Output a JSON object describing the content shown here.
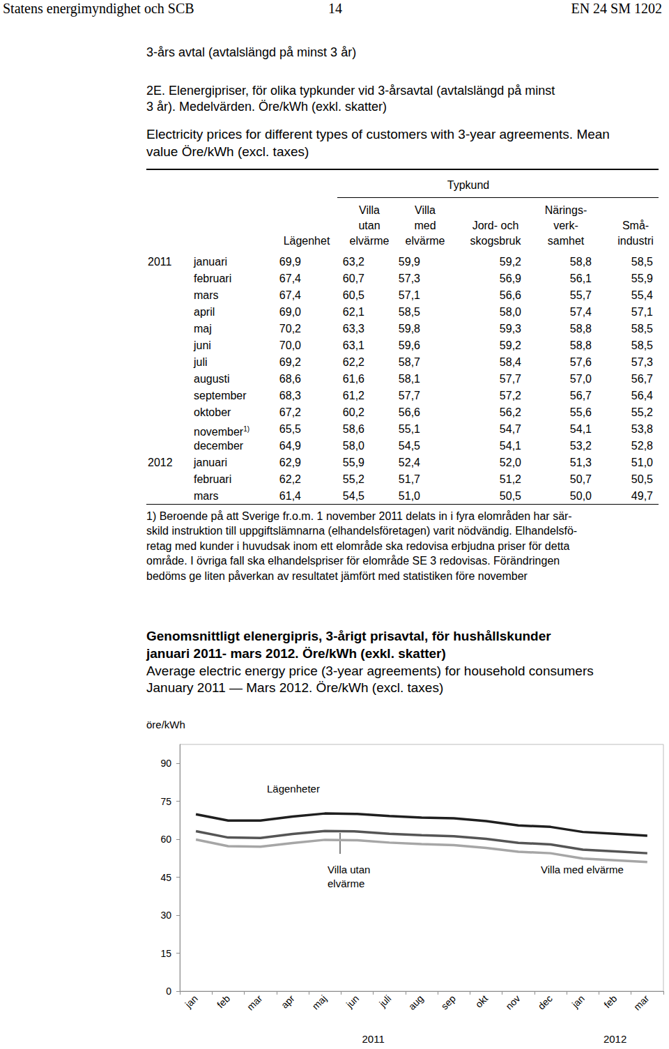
{
  "header": {
    "left": "Statens energimyndighet och SCB",
    "center": "14",
    "right": "EN 24 SM 1202"
  },
  "section_title": "3-års avtal (avtalslängd på minst 3 år)",
  "table_title": {
    "sv": [
      "2E. Elenergipriser, för olika typkunder vid 3-årsavtal (avtalslängd på minst",
      "3 år). Medelvärden. Öre/kWh (exkl. skatter)"
    ],
    "en": [
      "Electricity prices for different types of customers with 3-year agreements. Mean",
      "value Öre/kWh (excl. taxes)"
    ]
  },
  "table": {
    "group_header": "Typkund",
    "columns": [
      [
        "Lägenhet"
      ],
      [
        "Villa",
        "utan",
        "elvärme"
      ],
      [
        "Villa",
        "med",
        "elvärme"
      ],
      [
        "Jord- och",
        "skogsbruk"
      ],
      [
        "Närings-",
        "verk-",
        "samhet"
      ],
      [
        "Små-",
        "industri"
      ]
    ],
    "rows": [
      {
        "year": "2011",
        "month": "januari",
        "values": [
          "69,9",
          "63,2",
          "59,9",
          "59,2",
          "58,8",
          "58,5"
        ]
      },
      {
        "month": "februari",
        "values": [
          "67,4",
          "60,7",
          "57,3",
          "56,9",
          "56,1",
          "55,9"
        ]
      },
      {
        "month": "mars",
        "values": [
          "67,4",
          "60,5",
          "57,1",
          "56,6",
          "55,7",
          "55,4"
        ]
      },
      {
        "month": "april",
        "values": [
          "69,0",
          "62,1",
          "58,5",
          "58,0",
          "57,4",
          "57,1"
        ]
      },
      {
        "month": "maj",
        "values": [
          "70,2",
          "63,3",
          "59,8",
          "59,3",
          "58,8",
          "58,5"
        ]
      },
      {
        "month": "juni",
        "values": [
          "70,0",
          "63,1",
          "59,6",
          "59,2",
          "58,8",
          "58,5"
        ]
      },
      {
        "month": "juli",
        "values": [
          "69,2",
          "62,2",
          "58,7",
          "58,4",
          "57,6",
          "57,3"
        ]
      },
      {
        "month": "augusti",
        "values": [
          "68,6",
          "61,6",
          "58,1",
          "57,7",
          "57,0",
          "56,7"
        ]
      },
      {
        "month": "september",
        "values": [
          "68,3",
          "61,2",
          "57,7",
          "57,2",
          "56,7",
          "56,4"
        ]
      },
      {
        "month": "oktober",
        "values": [
          "67,2",
          "60,2",
          "56,6",
          "56,2",
          "55,6",
          "55,2"
        ]
      },
      {
        "month": "november",
        "note": "1)",
        "values": [
          "65,5",
          "58,6",
          "55,1",
          "54,7",
          "54,1",
          "53,8"
        ]
      },
      {
        "month": "december",
        "values": [
          "64,9",
          "58,0",
          "54,5",
          "54,1",
          "53,2",
          "52,8"
        ]
      },
      {
        "year": "2012",
        "month": "januari",
        "values": [
          "62,9",
          "55,9",
          "52,4",
          "52,0",
          "51,3",
          "51,0"
        ]
      },
      {
        "month": "februari",
        "values": [
          "62,2",
          "55,2",
          "51,7",
          "51,2",
          "50,7",
          "50,5"
        ]
      },
      {
        "month": "mars",
        "values": [
          "61,4",
          "54,5",
          "51,0",
          "50,5",
          "50,0",
          "49,7"
        ]
      }
    ]
  },
  "footnote": [
    "1) Beroende på att Sverige fr.o.m. 1 november 2011 delats in i fyra elområden har sär-",
    "skild instruktion till uppgiftslämnarna (elhandelsföretagen) varit nödvändig. Elhandelsfö-",
    "retag med kunder i huvudsak inom ett elområde ska redovisa erbjudna priser för detta",
    "område. I övriga fall ska elhandelspriser för elområde SE 3 redovisas. Förändringen",
    "bedöms ge liten påverkan av resultatet jämfört med statistiken före november"
  ],
  "chart_data": {
    "type": "line",
    "title": [
      "Genomsnittligt elenergipris, 3-årigt prisavtal, för hushållskunder",
      "januari 2011- mars 2012. Öre/kWh (exkl. skatter)"
    ],
    "subtitle": [
      "Average electric energy price (3-year agreements) for household consumers",
      "January 2011 — Mars 2012. Öre/kWh (excl. taxes)"
    ],
    "y_label": "öre/kWh",
    "categories": [
      "jan",
      "feb",
      "mar",
      "apr",
      "maj",
      "jun",
      "juli",
      "aug",
      "sep",
      "okt",
      "nov",
      "dec",
      "jan",
      "feb",
      "mar"
    ],
    "x_groups": [
      {
        "label": "2011",
        "from": 0,
        "to": 11
      },
      {
        "label": "2012",
        "from": 12,
        "to": 14
      }
    ],
    "series": [
      {
        "name": "Lägenheter",
        "color": "#1f1f1f",
        "values": [
          69.9,
          67.4,
          67.4,
          69.0,
          70.2,
          70.0,
          69.2,
          68.6,
          68.3,
          67.2,
          65.5,
          64.9,
          62.9,
          62.2,
          61.4
        ]
      },
      {
        "name": "Villa utan elvärme",
        "color": "#555555",
        "values": [
          63.2,
          60.7,
          60.5,
          62.1,
          63.3,
          63.1,
          62.2,
          61.6,
          61.2,
          60.2,
          58.6,
          58.0,
          55.9,
          55.2,
          54.5
        ]
      },
      {
        "name": "Villa med elvärme",
        "color": "#a6a6a6",
        "values": [
          59.9,
          57.3,
          57.1,
          58.5,
          59.8,
          59.6,
          58.7,
          58.1,
          57.7,
          56.6,
          55.1,
          54.5,
          52.4,
          51.7,
          51.0
        ]
      }
    ],
    "ylim": [
      0,
      97.5
    ],
    "yticks": [
      0,
      15,
      30,
      45,
      60,
      75,
      90
    ],
    "grid": false,
    "marker": "none"
  }
}
